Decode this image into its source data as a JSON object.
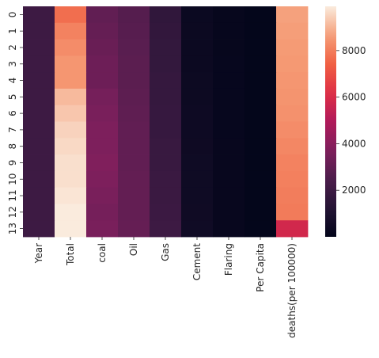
{
  "chart_data": {
    "type": "heatmap",
    "x_categories": [
      "Year",
      "Total",
      "coal",
      "Oil",
      "Gas",
      "Cement",
      "Flaring",
      "Per Capita",
      "deaths(per 100000)"
    ],
    "y_categories": [
      "0",
      "1",
      "2",
      "3",
      "4",
      "5",
      "6",
      "7",
      "8",
      "9",
      "10",
      "11",
      "12",
      "13"
    ],
    "values": [
      [
        2000,
        7700,
        3000,
        2700,
        1600,
        300,
        150,
        50,
        8700
      ],
      [
        2000,
        8100,
        3100,
        2750,
        1650,
        320,
        150,
        50,
        8650
      ],
      [
        2001,
        8300,
        3200,
        2800,
        1700,
        330,
        155,
        50,
        8600
      ],
      [
        2001,
        8500,
        3300,
        2850,
        1700,
        340,
        160,
        50,
        8550
      ],
      [
        2002,
        8500,
        3300,
        2850,
        1750,
        360,
        160,
        50,
        8500
      ],
      [
        2002,
        9100,
        3500,
        2900,
        1750,
        380,
        160,
        50,
        8450
      ],
      [
        2003,
        9300,
        3600,
        2950,
        1800,
        400,
        165,
        50,
        8400
      ],
      [
        2003,
        9500,
        3700,
        3000,
        1800,
        420,
        165,
        50,
        8300
      ],
      [
        2004,
        9600,
        3700,
        3000,
        1850,
        430,
        170,
        50,
        8200
      ],
      [
        2004,
        9700,
        3750,
        3000,
        1850,
        440,
        170,
        50,
        8100
      ],
      [
        2005,
        9700,
        3700,
        3050,
        1900,
        450,
        170,
        50,
        8050
      ],
      [
        2005,
        9800,
        3600,
        3050,
        1900,
        460,
        170,
        50,
        8000
      ],
      [
        2006,
        9900,
        3500,
        3050,
        1950,
        470,
        175,
        50,
        7950
      ],
      [
        2006,
        9900,
        3600,
        3100,
        2000,
        480,
        175,
        50,
        5800
      ]
    ],
    "colorbar": {
      "min": 0,
      "max": 9900,
      "ticks": [
        2000,
        4000,
        6000,
        8000
      ]
    },
    "colormap": "rocket"
  }
}
